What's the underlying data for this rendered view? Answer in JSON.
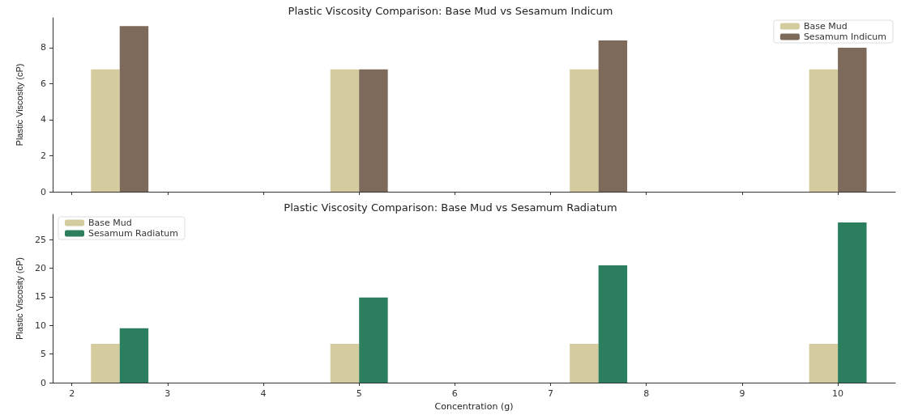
{
  "chart_data": [
    {
      "type": "bar",
      "title": "Plastic Viscosity Comparison: Base Mud vs Sesamum Indicum",
      "ylabel": "Plastic Viscosity (cP)",
      "x": [
        2.5,
        5,
        7.5,
        10
      ],
      "series": [
        {
          "name": "Base Mud",
          "color": "#d4cb9f",
          "values": [
            6.8,
            6.8,
            6.8,
            6.8
          ]
        },
        {
          "name": "Sesamum Indicum",
          "color": "#7d6a5a",
          "values": [
            9.2,
            6.8,
            8.4,
            8.0
          ]
        }
      ],
      "xlim": [
        1.8,
        10.6
      ],
      "xticks": [
        2,
        3,
        4,
        5,
        6,
        7,
        8,
        9,
        10
      ],
      "ylim": [
        0,
        9.66
      ],
      "yticks": [
        0,
        2,
        4,
        6,
        8
      ],
      "tick_labels": "y",
      "grid": false,
      "legend": "top right"
    },
    {
      "type": "bar",
      "title": "Plastic Viscosity Comparison: Base Mud vs Sesamum Radiatum",
      "xlabel": "Concentration (g)",
      "ylabel": "Plastic Viscosity (cP)",
      "x": [
        2.5,
        5,
        7.5,
        10
      ],
      "series": [
        {
          "name": "Base Mud",
          "color": "#d4cb9f",
          "values": [
            6.8,
            6.8,
            6.8,
            6.8
          ]
        },
        {
          "name": "Sesamum Radiatum",
          "color": "#2c7f5e",
          "values": [
            9.5,
            14.9,
            20.5,
            28.0
          ]
        }
      ],
      "xlim": [
        1.8,
        10.6
      ],
      "xticks": [
        2,
        3,
        4,
        5,
        6,
        7,
        8,
        9,
        10
      ],
      "ylim": [
        0,
        29.4
      ],
      "yticks": [
        0,
        5,
        10,
        15,
        20,
        25
      ],
      "grid": false,
      "legend": "top left"
    }
  ]
}
